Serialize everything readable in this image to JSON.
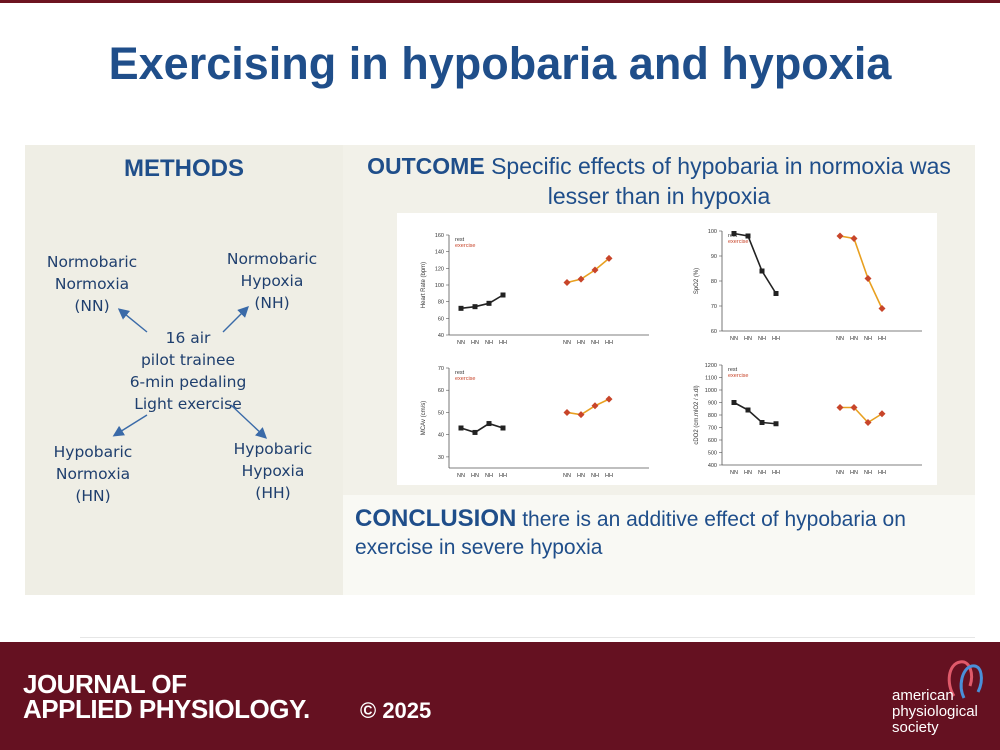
{
  "title": "Exercising in hypobaria and hypoxia",
  "methods": {
    "heading": "METHODS",
    "center": [
      "16 air",
      "pilot trainee",
      "6-min pedaling",
      "Light exercise"
    ],
    "nn": [
      "Normobaric",
      "Normoxia",
      "(NN)"
    ],
    "nh": [
      "Normobaric",
      "Hypoxia",
      "(NH)"
    ],
    "hn": [
      "Hypobaric",
      "Normoxia",
      "(HN)"
    ],
    "hh": [
      "Hypobaric",
      "Hypoxia",
      "(HH)"
    ]
  },
  "outcome": {
    "label": "OUTCOME",
    "text": "Specific effects of hypobaria in normoxia was lesser than in hypoxia"
  },
  "conclusion": {
    "label": "CONCLUSION",
    "text": "there is an additive effect of hypobaria on exercise in severe hypoxia"
  },
  "footer": {
    "journal_line1": "JOURNAL OF",
    "journal_line2": "APPLIED PHYSIOLOGY.",
    "copyright": "© 2025",
    "society": [
      "american",
      "physiological",
      "society"
    ]
  },
  "colors": {
    "title": "#1f4e8a",
    "footer": "#651121",
    "rest": "#222222",
    "exercise": "#e8a020",
    "exercise_mean": "#c8452a"
  },
  "chart_data": [
    {
      "type": "line",
      "ylabel": "Heart Rate (bpm)",
      "legend": [
        "rest",
        "exercise"
      ],
      "categories": [
        "NN",
        "HN",
        "NH",
        "HH"
      ],
      "ylim": [
        40,
        160
      ],
      "yticks": [
        40,
        60,
        80,
        100,
        120,
        140,
        160
      ],
      "series": [
        {
          "name": "rest",
          "values": [
            72,
            74,
            78,
            88
          ]
        },
        {
          "name": "exercise",
          "values": [
            103,
            107,
            118,
            132
          ]
        }
      ]
    },
    {
      "type": "line",
      "ylabel": "SpO2 (%)",
      "legend": [
        "rest",
        "exercise"
      ],
      "categories": [
        "NN",
        "HN",
        "NH",
        "HH"
      ],
      "ylim": [
        60,
        100
      ],
      "yticks": [
        60,
        70,
        80,
        90,
        100
      ],
      "series": [
        {
          "name": "rest",
          "values": [
            99,
            98,
            84,
            75
          ]
        },
        {
          "name": "exercise",
          "values": [
            98,
            97,
            81,
            69
          ]
        }
      ]
    },
    {
      "type": "line",
      "ylabel": "MCAv (cm/s)",
      "legend": [
        "rest",
        "exercise"
      ],
      "categories": [
        "NN",
        "HN",
        "NH",
        "HH"
      ],
      "ylim": [
        25,
        70
      ],
      "yticks": [
        30,
        40,
        50,
        60,
        70
      ],
      "series": [
        {
          "name": "rest",
          "values": [
            43,
            41,
            45,
            43
          ]
        },
        {
          "name": "exercise",
          "values": [
            50,
            49,
            53,
            56
          ]
        }
      ]
    },
    {
      "type": "line",
      "ylabel": "cDO2 (cm.mlO2 / s.dl)",
      "legend": [
        "rest",
        "exercise"
      ],
      "categories": [
        "NN",
        "HN",
        "NH",
        "HH"
      ],
      "ylim": [
        400,
        1200
      ],
      "yticks": [
        400,
        500,
        600,
        700,
        800,
        900,
        1000,
        1100,
        1200
      ],
      "series": [
        {
          "name": "rest",
          "values": [
            900,
            840,
            740,
            730
          ]
        },
        {
          "name": "exercise",
          "values": [
            860,
            860,
            740,
            810
          ]
        }
      ]
    }
  ]
}
